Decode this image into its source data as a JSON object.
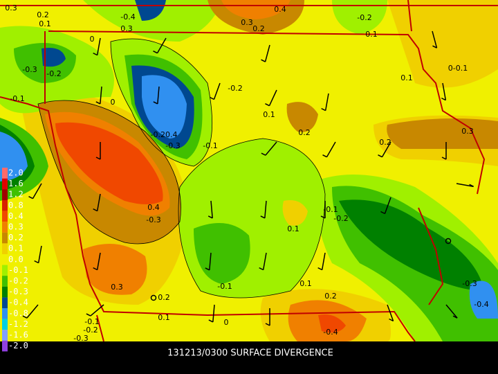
{
  "caption": "131213/0300 SURFACE DIVERGENCE",
  "legend": [
    {
      "label": "2.0",
      "color": "#ff6a6a"
    },
    {
      "label": "1.6",
      "color": "#e00000"
    },
    {
      "label": "1.2",
      "color": "#a00000"
    },
    {
      "label": "0.8",
      "color": "#d82000"
    },
    {
      "label": "0.4",
      "color": "#f04800"
    },
    {
      "label": "0.3",
      "color": "#f08000"
    },
    {
      "label": "0.2",
      "color": "#c88800"
    },
    {
      "label": "0.1",
      "color": "#f0d000"
    },
    {
      "label": "0.0",
      "color": "#f0f000"
    },
    {
      "label": "-0.1",
      "color": "#a0f000"
    },
    {
      "label": "-0.2",
      "color": "#40c000"
    },
    {
      "label": "-0.3",
      "color": "#008000"
    },
    {
      "label": "-0.4",
      "color": "#004890"
    },
    {
      "label": "-0.8",
      "color": "#3090f0"
    },
    {
      "label": "-1.2",
      "color": "#00d0e0"
    },
    {
      "label": "-1.6",
      "color": "#80a0ff"
    },
    {
      "label": "-2.0",
      "color": "#9040e0"
    }
  ],
  "contour_labels": [
    "0.3",
    "0.2",
    "0.1",
    "-0.4",
    "0.3",
    "0.4",
    "0.3",
    "0.2",
    "-0.2",
    "0.1",
    "0",
    "-0.3",
    "-0.2",
    "-0.1",
    "0",
    "-0.2",
    "0.1",
    "0-0.1",
    "0.1",
    "0.2",
    "0.2",
    "0.3",
    "-0.20.4",
    "-0.3",
    "-0.1",
    "0.4",
    "-0.3",
    "0.1",
    "-0.1",
    "-0.2",
    "0.3",
    "-0.1",
    "0.1",
    "0.2",
    "0.2",
    "-0.3",
    "-0.4",
    "0.1",
    "0",
    "-0.4",
    "-0.1",
    "-0.2",
    "-0.3"
  ]
}
